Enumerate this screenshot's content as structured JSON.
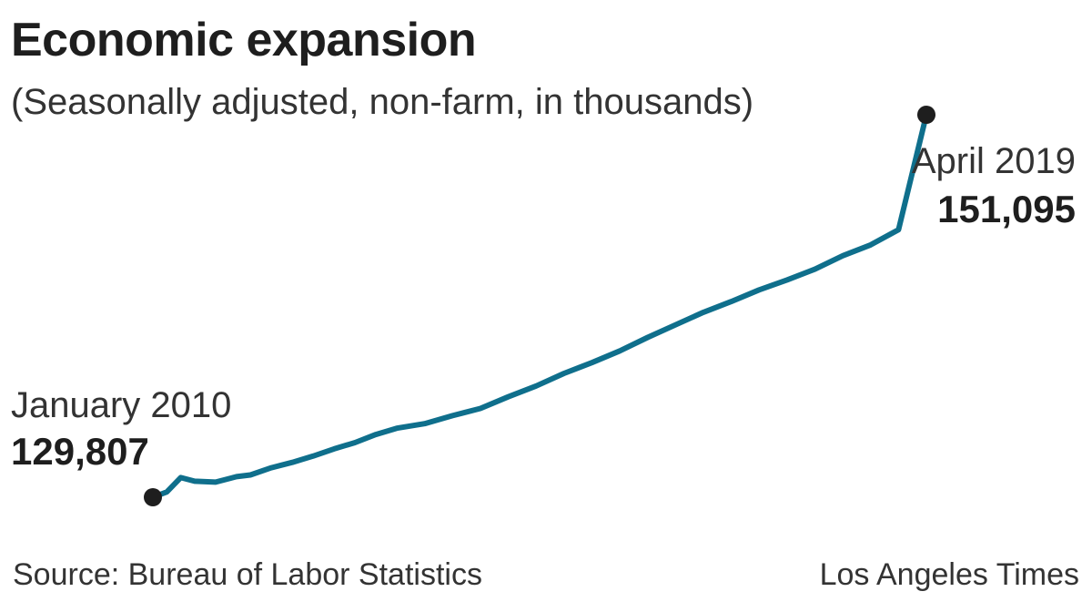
{
  "header": {
    "title": "Economic expansion",
    "subtitle": "(Seasonally adjusted, non-farm, in thousands)"
  },
  "footer": {
    "source": "Source: Bureau of Labor Statistics",
    "credit": "Los Angeles Times"
  },
  "colors": {
    "line": "#0f6f8c",
    "marker": "#1e1e1e",
    "text": "#1e1e1e"
  },
  "chart_data": {
    "type": "line",
    "title": "Economic expansion",
    "subtitle": "(Seasonally adjusted, non-farm, in thousands)",
    "xlabel": "",
    "ylabel": "",
    "grid": false,
    "legend": "none",
    "x_range": [
      "2010-01",
      "2019-04"
    ],
    "ylim": [
      129500,
      151400
    ],
    "series": [
      {
        "values": [
          {
            "x": "2010-01",
            "y": 129807
          },
          {
            "x": "2010-03",
            "y": 130100
          },
          {
            "x": "2010-05",
            "y": 130900
          },
          {
            "x": "2010-07",
            "y": 130700
          },
          {
            "x": "2010-10",
            "y": 130650
          },
          {
            "x": "2011-01",
            "y": 130950
          },
          {
            "x": "2011-03",
            "y": 131050
          },
          {
            "x": "2011-06",
            "y": 131450
          },
          {
            "x": "2011-09",
            "y": 131750
          },
          {
            "x": "2011-12",
            "y": 132100
          },
          {
            "x": "2012-03",
            "y": 132500
          },
          {
            "x": "2012-06",
            "y": 132850
          },
          {
            "x": "2012-09",
            "y": 133300
          },
          {
            "x": "2012-12",
            "y": 133650
          },
          {
            "x": "2013-04",
            "y": 133900
          },
          {
            "x": "2013-08",
            "y": 134350
          },
          {
            "x": "2013-12",
            "y": 134750
          },
          {
            "x": "2014-04",
            "y": 135400
          },
          {
            "x": "2014-08",
            "y": 136000
          },
          {
            "x": "2014-12",
            "y": 136700
          },
          {
            "x": "2015-04",
            "y": 137300
          },
          {
            "x": "2015-08",
            "y": 137950
          },
          {
            "x": "2015-12",
            "y": 138700
          },
          {
            "x": "2016-04",
            "y": 139400
          },
          {
            "x": "2016-08",
            "y": 140100
          },
          {
            "x": "2016-12",
            "y": 140700
          },
          {
            "x": "2017-04",
            "y": 141350
          },
          {
            "x": "2017-08",
            "y": 141900
          },
          {
            "x": "2017-12",
            "y": 142500
          },
          {
            "x": "2018-04",
            "y": 143250
          },
          {
            "x": "2018-08",
            "y": 143850
          },
          {
            "x": "2018-12",
            "y": 144700
          },
          {
            "x": "2019-04",
            "y": 151095
          }
        ]
      }
    ],
    "annotations": [
      {
        "x": "2010-01",
        "label": "January 2010",
        "value": "129,807"
      },
      {
        "x": "2019-04",
        "label": "April 2019",
        "value": "151,095"
      }
    ]
  }
}
